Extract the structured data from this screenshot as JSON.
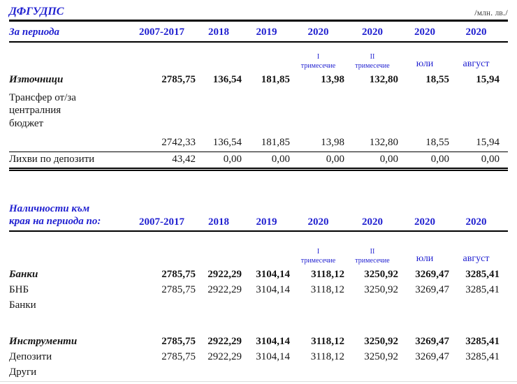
{
  "title": "ДФГУДПС",
  "unit": "/млн. лв./",
  "colors": {
    "accent_blue": "#1f1fd0",
    "text": "#161616",
    "rule": "#000000"
  },
  "years": [
    "2007-2017",
    "2018",
    "2019",
    "2020",
    "2020",
    "2020",
    "2020"
  ],
  "quarter_headers": {
    "q1_numeral": "I",
    "q1_word": "тримесечие",
    "q2_numeral": "II",
    "q2_word": "тримесечие",
    "july": "юли",
    "august": "август"
  },
  "section_period": {
    "row_label": "За периода",
    "rows": {
      "sources": {
        "label": "Източници",
        "values": [
          "2785,75",
          "136,54",
          "181,85",
          "13,98",
          "132,80",
          "18,55",
          "15,94"
        ]
      },
      "transfer": {
        "label": "Трансфер от/за централния бюджет",
        "values": [
          "2742,33",
          "136,54",
          "181,85",
          "13,98",
          "132,80",
          "18,55",
          "15,94"
        ]
      },
      "interest": {
        "label": "Лихви по депозити",
        "values": [
          "43,42",
          "0,00",
          "0,00",
          "0,00",
          "0,00",
          "0,00",
          "0,00"
        ]
      }
    }
  },
  "section_balances": {
    "header_label": "Наличности към края на периода по:",
    "rows": {
      "banks_group": {
        "label": "Банки",
        "values": [
          "2785,75",
          "2922,29",
          "3104,14",
          "3118,12",
          "3250,92",
          "3269,47",
          "3285,41"
        ]
      },
      "bnb": {
        "label": "БНБ",
        "values": [
          "2785,75",
          "2922,29",
          "3104,14",
          "3118,12",
          "3250,92",
          "3269,47",
          "3285,41"
        ]
      },
      "banks_item": {
        "label": "Банки",
        "values": []
      },
      "instruments_group": {
        "label": "Инструменти",
        "values": [
          "2785,75",
          "2922,29",
          "3104,14",
          "3118,12",
          "3250,92",
          "3269,47",
          "3285,41"
        ]
      },
      "deposits": {
        "label": "Депозити",
        "values": [
          "2785,75",
          "2922,29",
          "3104,14",
          "3118,12",
          "3250,92",
          "3269,47",
          "3285,41"
        ]
      },
      "others": {
        "label": "Други",
        "values": []
      }
    }
  }
}
